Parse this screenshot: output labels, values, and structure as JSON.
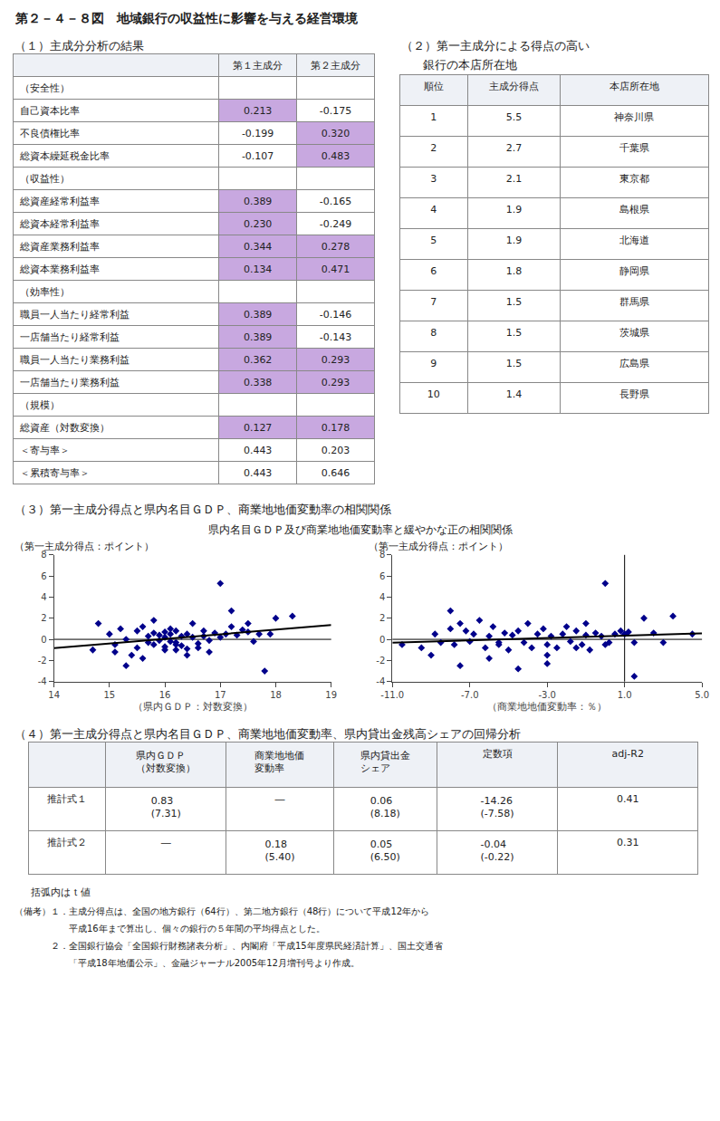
{
  "title": "第２－４－８図　地域銀行の収益性に影響を与える経営環境",
  "chart_data": [
    {
      "type": "table",
      "title": "（１）主成分分析の結果",
      "categories": [
        "（安全性）",
        "自己資本比率",
        "不良債権比率",
        "総資本繰延税金比率",
        "（収益性）",
        "総資産経常利益率",
        "総資本経常利益率",
        "総資産業務利益率",
        "総資本業務利益率",
        "（効率性）",
        "職員一人当たり経常利益",
        "一店舗当たり経常利益",
        "職員一人当たり業務利益",
        "一店舗当たり業務利益",
        "（規模）",
        "総資産（対数変換）",
        "＜寄与率＞",
        "＜累積寄与率＞"
      ],
      "series": [
        {
          "name": "第１主成分",
          "values": [
            null,
            0.213,
            -0.199,
            -0.107,
            null,
            0.389,
            0.23,
            0.344,
            0.134,
            null,
            0.389,
            0.389,
            0.362,
            0.338,
            null,
            0.127,
            0.443,
            0.443
          ],
          "value_labels": [
            null,
            "0.213",
            "-0.199",
            "-0.107",
            null,
            "0.389",
            "0.230",
            "0.344",
            "0.134",
            null,
            "0.389",
            "0.389",
            "0.362",
            "0.338",
            null,
            "0.127",
            "0.443",
            "0.443"
          ],
          "colors": [
            null,
            "#c8a8e0",
            null,
            null,
            null,
            "#c8a8e0",
            "#c8a8e0",
            "#c8a8e0",
            "#c8a8e0",
            null,
            "#c8a8e0",
            "#c8a8e0",
            "#c8a8e0",
            "#c8a8e0",
            null,
            "#c8a8e0",
            null,
            null
          ]
        },
        {
          "name": "第２主成分",
          "values": [
            null,
            -0.175,
            0.32,
            0.483,
            null,
            -0.165,
            -0.249,
            0.278,
            0.471,
            null,
            -0.146,
            -0.143,
            0.293,
            0.293,
            null,
            0.178,
            0.203,
            0.646
          ],
          "value_labels": [
            null,
            "-0.175",
            "0.320",
            "0.483",
            null,
            "-0.165",
            "-0.249",
            "0.278",
            "0.471",
            null,
            "-0.146",
            "-0.143",
            "0.293",
            "0.293",
            null,
            "0.178",
            "0.203",
            "0.646"
          ],
          "colors": [
            null,
            null,
            "#c8a8e0",
            "#c8a8e0",
            null,
            null,
            null,
            "#c8a8e0",
            "#c8a8e0",
            null,
            null,
            null,
            "#c8a8e0",
            "#c8a8e0",
            null,
            "#c8a8e0",
            null,
            null
          ]
        }
      ]
    },
    {
      "type": "table",
      "title": "（２）第一主成分による得点の高い\n銀行の本店所在地",
      "columns": [
        "順位",
        "主成分得点",
        "本店所在地"
      ],
      "rows": [
        [
          1,
          5.5,
          "神奈川県"
        ],
        [
          2,
          2.7,
          "千葉県"
        ],
        [
          3,
          2.1,
          "東京都"
        ],
        [
          4,
          1.9,
          "島根県"
        ],
        [
          5,
          1.9,
          "北海道"
        ],
        [
          6,
          1.8,
          "静岡県"
        ],
        [
          7,
          1.5,
          "群馬県"
        ],
        [
          8,
          1.5,
          "茨城県"
        ],
        [
          9,
          1.5,
          "広島県"
        ],
        [
          10,
          1.4,
          "長野県"
        ]
      ]
    },
    {
      "type": "scatter",
      "title": "（３）第一主成分得点と県内名目ＧＤＰ、商業地地価変動率の相関関係",
      "subtitle": "県内名目ＧＤＰ及び商業地地価変動率と緩やかな正の相関関係",
      "xlabel": "（県内ＧＤＰ：対数変換）",
      "ylabel": "（第一主成分得点：ポイント）",
      "xlim": [
        14,
        19
      ],
      "xticks": [
        14,
        15,
        16,
        17,
        18,
        19
      ],
      "ylim": [
        -4,
        8
      ],
      "yticks": [
        -4,
        -2,
        0,
        2,
        4,
        6,
        8
      ],
      "grid": false,
      "hlines": [
        0
      ],
      "series": [
        {
          "type": "scatter",
          "marker": "diamond",
          "color": "#00008B",
          "x": [
            14.8,
            15.0,
            15.1,
            15.2,
            15.3,
            15.4,
            15.5,
            15.5,
            15.6,
            15.7,
            15.7,
            15.8,
            15.8,
            15.8,
            15.9,
            15.9,
            16.0,
            16.0,
            16.0,
            16.1,
            16.1,
            16.1,
            16.2,
            16.2,
            16.2,
            16.3,
            16.3,
            16.4,
            16.4,
            16.5,
            16.5,
            16.6,
            16.7,
            16.7,
            16.8,
            16.9,
            17.0,
            17.0,
            17.1,
            17.2,
            17.3,
            17.4,
            17.5,
            17.5,
            17.6,
            17.7,
            17.8,
            18.0,
            18.3,
            14.7,
            15.1,
            15.3,
            15.6,
            16.0,
            16.2,
            16.4,
            16.6,
            16.8,
            17.2,
            17.9
          ],
          "values": [
            1.5,
            0.5,
            -0.5,
            1.0,
            0.0,
            -1.5,
            0.8,
            -0.8,
            1.2,
            0.3,
            -0.3,
            0.6,
            -0.5,
            1.8,
            -0.1,
            0.4,
            0.7,
            -0.7,
            0.2,
            1.0,
            -0.2,
            0.5,
            0.8,
            -0.3,
            -1.0,
            0.3,
            -0.6,
            0.5,
            -0.9,
            0.2,
            1.5,
            -0.4,
            0.3,
            0.8,
            -0.1,
            0.6,
            5.3,
            0.2,
            0.5,
            1.2,
            0.4,
            0.9,
            0.7,
            1.5,
            -0.2,
            0.5,
            -3.0,
            2.0,
            2.2,
            -1.0,
            -1.2,
            -2.5,
            -1.8,
            -1.0,
            -0.5,
            -1.5,
            -0.8,
            -1.2,
            2.7,
            0.5
          ]
        },
        {
          "type": "line",
          "color": "#000000",
          "x": [
            14,
            19
          ],
          "values": [
            -0.8273,
            1.3531
          ]
        }
      ]
    },
    {
      "type": "scatter",
      "xlabel": "（商業地地価変動率：％）",
      "ylabel": "（第一主成分得点：ポイント）",
      "xlim": [
        -11,
        5
      ],
      "xticks": [
        {
          "value": -11,
          "label": "-11.0"
        },
        {
          "value": -7,
          "label": "-7.0"
        },
        {
          "value": -3,
          "label": "-3.0"
        },
        {
          "value": 1,
          "label": "1.0"
        },
        {
          "value": 5,
          "label": "5.0"
        }
      ],
      "ylim": [
        -4,
        8
      ],
      "yticks": [
        -4,
        -2,
        0,
        2,
        4,
        6,
        8
      ],
      "grid": false,
      "hlines": [
        0
      ],
      "vlines": [
        1.0
      ],
      "series": [
        {
          "type": "scatter",
          "marker": "diamond",
          "color": "#00008B",
          "x": [
            -10.5,
            -9.5,
            -8.8,
            -8.5,
            -8.0,
            -7.8,
            -7.5,
            -7.2,
            -7.0,
            -6.8,
            -6.5,
            -6.2,
            -6.0,
            -5.8,
            -5.5,
            -5.2,
            -5.0,
            -4.8,
            -4.5,
            -4.2,
            -4.0,
            -3.8,
            -3.5,
            -3.2,
            -3.0,
            -2.8,
            -2.5,
            -2.2,
            -2.0,
            -1.8,
            -1.5,
            -1.2,
            -1.0,
            -0.8,
            -0.5,
            -0.2,
            0.0,
            0.2,
            0.5,
            0.8,
            1.2,
            1.5,
            2.0,
            2.5,
            3.0,
            -9.0,
            -7.5,
            -6.0,
            -4.5,
            -3.0,
            -1.5,
            0.0,
            1.5,
            3.5,
            4.5,
            -8.0,
            -5.5,
            -3.0,
            -1.0,
            1.0
          ],
          "values": [
            -0.5,
            -0.8,
            0.5,
            -0.3,
            1.0,
            -0.5,
            1.5,
            0.8,
            -0.2,
            0.5,
            1.8,
            -0.8,
            0.3,
            1.2,
            -0.5,
            0.6,
            -1.0,
            0.4,
            0.8,
            -0.3,
            1.5,
            -0.8,
            0.5,
            1.0,
            -0.5,
            0.3,
            -0.8,
            0.5,
            1.2,
            -0.2,
            0.8,
            -0.5,
            0.4,
            -1.0,
            0.6,
            0.3,
            5.3,
            -0.3,
            0.5,
            0.8,
            0.7,
            -0.3,
            2.0,
            0.6,
            -0.3,
            -1.5,
            -2.5,
            -1.8,
            -2.8,
            -1.5,
            -0.8,
            -0.5,
            -3.5,
            2.2,
            0.5,
            2.7,
            -0.3,
            -2.3,
            1.5,
            0.5
          ]
        },
        {
          "type": "line",
          "color": "#000000",
          "x": [
            -11,
            5
          ],
          "values": [
            -0.3125,
            0.5653
          ]
        }
      ]
    },
    {
      "type": "table",
      "title": "（４）第一主成分得点と県内名目ＧＤＰ、商業地地価変動率、県内貸出金残高シェアの回帰分析",
      "columns": [
        "県内ＧＤＰ\n（対数変換）",
        "商業地地価\n変動率",
        "県内貸出金\nシェア",
        "定数項",
        "adj-R2"
      ],
      "rows": [
        {
          "name": "推計式１",
          "values": [
            "0.83\n(7.31)",
            "―",
            "0.06\n(8.18)",
            "-14.26\n(-7.58)",
            "0.41"
          ]
        },
        {
          "name": "推計式２",
          "values": [
            "―",
            "0.18\n(5.40)",
            "0.05\n(6.50)",
            "-0.04\n(-0.22)",
            "0.31"
          ]
        }
      ],
      "annotations": [
        "括弧内はｔ値"
      ]
    }
  ],
  "annotations": [
    "（備考）１．主成分得点は、全国の地方銀行（64行）、第二地方銀行（48行）について平成12年から",
    "　　　　　　平成16年まで算出し、個々の銀行の５年間の平均得点とした。",
    "　　　　２．全国銀行協会「全国銀行財務諸表分析」、内閣府「平成15年度県民経済計算」、国土交通省",
    "　　　　　　「平成18年地価公示」、金融ジャーナル2005年12月増刊号より作成。"
  ]
}
